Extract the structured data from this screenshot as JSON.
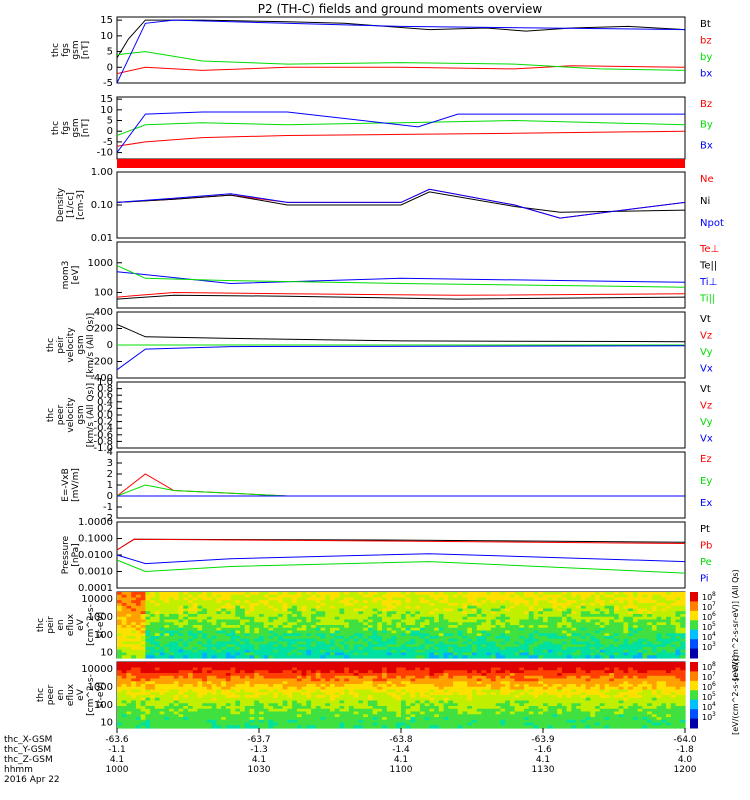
{
  "title": "P2 (TH-C) fields and ground moments overview",
  "colors": {
    "black": "#000000",
    "red": "#ff0000",
    "green": "#00dd00",
    "blue": "#0000ff",
    "magenta": "#cc00cc"
  },
  "chart_data": [
    {
      "type": "line",
      "ylabel": [
        "thc",
        "fgs",
        "gsm",
        "[nT]"
      ],
      "yticks": [
        "15",
        "10",
        "5",
        "0",
        "-5"
      ],
      "ylim": [
        -5,
        16
      ],
      "log": false,
      "series": [
        {
          "name": "Bt",
          "color": "#000000",
          "points": [
            [
              0,
              3
            ],
            [
              0.02,
              9
            ],
            [
              0.05,
              15
            ],
            [
              0.15,
              15
            ],
            [
              0.3,
              14.5
            ],
            [
              0.4,
              14
            ],
            [
              0.55,
              12
            ],
            [
              0.65,
              12.5
            ],
            [
              0.72,
              11.5
            ],
            [
              0.8,
              12.5
            ],
            [
              0.9,
              13
            ],
            [
              1,
              12
            ]
          ]
        },
        {
          "name": "bz",
          "color": "#ff0000",
          "points": [
            [
              0,
              -2
            ],
            [
              0.05,
              0
            ],
            [
              0.15,
              -1
            ],
            [
              0.3,
              0
            ],
            [
              0.5,
              0
            ],
            [
              0.7,
              -0.5
            ],
            [
              0.8,
              0.5
            ],
            [
              1,
              0
            ]
          ]
        },
        {
          "name": "by",
          "color": "#00dd00",
          "points": [
            [
              0,
              4
            ],
            [
              0.05,
              5
            ],
            [
              0.15,
              2
            ],
            [
              0.3,
              1
            ],
            [
              0.5,
              1.5
            ],
            [
              0.7,
              1
            ],
            [
              0.85,
              -0.5
            ],
            [
              1,
              -1
            ]
          ]
        },
        {
          "name": "bx",
          "color": "#0000ff",
          "points": [
            [
              0,
              -5
            ],
            [
              0.05,
              14
            ],
            [
              0.1,
              15
            ],
            [
              0.5,
              13
            ],
            [
              1,
              12
            ]
          ]
        }
      ]
    },
    {
      "type": "line",
      "ylabel": [
        "thc",
        "fgs",
        "gsm",
        "[nT]"
      ],
      "yticks": [
        "15",
        "10",
        "5",
        "0",
        "-5",
        "-10"
      ],
      "ylim": [
        -13,
        16
      ],
      "log": false,
      "series": [
        {
          "name": "Bz",
          "color": "#ff0000",
          "points": [
            [
              0,
              -7
            ],
            [
              0.05,
              -5
            ],
            [
              0.15,
              -3
            ],
            [
              0.3,
              -2
            ],
            [
              0.5,
              -1.5
            ],
            [
              0.7,
              -1
            ],
            [
              1,
              0
            ]
          ]
        },
        {
          "name": "By",
          "color": "#00dd00",
          "points": [
            [
              0,
              -2
            ],
            [
              0.05,
              3
            ],
            [
              0.15,
              4
            ],
            [
              0.3,
              3
            ],
            [
              0.5,
              4
            ],
            [
              0.7,
              5
            ],
            [
              1,
              3
            ]
          ]
        },
        {
          "name": "Bx",
          "color": "#0000ff",
          "points": [
            [
              0,
              -10
            ],
            [
              0.05,
              8
            ],
            [
              0.15,
              9
            ],
            [
              0.3,
              9
            ],
            [
              0.53,
              2
            ],
            [
              0.6,
              8
            ],
            [
              0.8,
              8
            ],
            [
              1,
              8
            ]
          ]
        }
      ]
    },
    {
      "type": "heatmap",
      "label": "flag bar"
    },
    {
      "type": "line",
      "ylabel": [
        "Density",
        "[1/cc]",
        "[cm-3]"
      ],
      "yticks": [
        "1.00",
        "0.10",
        "0.01"
      ],
      "ylim": [
        0.01,
        1
      ],
      "log": true,
      "series": [
        {
          "name": "Ne",
          "color": "#ff0000",
          "points": [
            [
              0,
              0.12
            ],
            [
              0.1,
              0.15
            ],
            [
              0.2,
              0.2
            ],
            [
              0.3,
              0.12
            ],
            [
              0.5,
              0.12
            ],
            [
              0.55,
              0.3
            ],
            [
              0.7,
              0.1
            ],
            [
              0.78,
              0.04
            ],
            [
              1,
              0.12
            ]
          ]
        },
        {
          "name": "Ni",
          "color": "#000000",
          "points": [
            [
              0,
              0.12
            ],
            [
              0.1,
              0.15
            ],
            [
              0.2,
              0.2
            ],
            [
              0.3,
              0.1
            ],
            [
              0.5,
              0.1
            ],
            [
              0.55,
              0.25
            ],
            [
              0.7,
              0.09
            ],
            [
              0.78,
              0.06
            ],
            [
              1,
              0.07
            ]
          ]
        },
        {
          "name": "Npot",
          "color": "#0000ff",
          "points": [
            [
              0,
              0.12
            ],
            [
              0.1,
              0.16
            ],
            [
              0.2,
              0.22
            ],
            [
              0.3,
              0.12
            ],
            [
              0.5,
              0.12
            ],
            [
              0.55,
              0.3
            ],
            [
              0.7,
              0.1
            ],
            [
              0.78,
              0.04
            ],
            [
              1,
              0.12
            ]
          ]
        }
      ]
    },
    {
      "type": "line",
      "ylabel": [
        "mom3",
        "[eV]"
      ],
      "yticks": [
        "1000",
        "100"
      ],
      "ylim": [
        30,
        5000
      ],
      "log": true,
      "series": [
        {
          "name": "Te⊥",
          "color": "#ff0000",
          "points": [
            [
              0,
              70
            ],
            [
              0.1,
              100
            ],
            [
              0.3,
              90
            ],
            [
              0.6,
              80
            ],
            [
              1,
              90
            ]
          ]
        },
        {
          "name": "Te||",
          "color": "#000000",
          "points": [
            [
              0,
              60
            ],
            [
              0.1,
              80
            ],
            [
              0.3,
              75
            ],
            [
              0.6,
              60
            ],
            [
              1,
              70
            ]
          ]
        },
        {
          "name": "Ti⊥",
          "color": "#0000ff",
          "points": [
            [
              0,
              500
            ],
            [
              0.05,
              400
            ],
            [
              0.2,
              200
            ],
            [
              0.5,
              300
            ],
            [
              1,
              220
            ]
          ]
        },
        {
          "name": "Ti||",
          "color": "#00dd00",
          "points": [
            [
              0,
              800
            ],
            [
              0.05,
              300
            ],
            [
              0.2,
              250
            ],
            [
              0.5,
              200
            ],
            [
              1,
              150
            ]
          ]
        }
      ]
    },
    {
      "type": "line",
      "ylabel": [
        "thc",
        "peir",
        "velocity",
        "gsm",
        "[km/s (All Qs)]"
      ],
      "yticks": [
        "400",
        "200",
        "0",
        "-200",
        "-400"
      ],
      "ylim": [
        -400,
        400
      ],
      "log": false,
      "series": [
        {
          "name": "Vt",
          "color": "#000000",
          "points": [
            [
              0,
              250
            ],
            [
              0.05,
              100
            ],
            [
              0.2,
              80
            ],
            [
              0.5,
              50
            ],
            [
              1,
              40
            ]
          ]
        },
        {
          "name": "Vz",
          "color": "#ff0000",
          "points": [
            [
              0,
              0
            ],
            [
              0.2,
              0
            ],
            [
              1,
              0
            ]
          ]
        },
        {
          "name": "Vy",
          "color": "#00dd00",
          "points": [
            [
              0,
              0
            ],
            [
              0.2,
              0
            ],
            [
              1,
              0
            ]
          ]
        },
        {
          "name": "Vx",
          "color": "#0000ff",
          "points": [
            [
              0,
              -300
            ],
            [
              0.05,
              -50
            ],
            [
              0.2,
              -20
            ],
            [
              1,
              -10
            ]
          ]
        }
      ]
    },
    {
      "type": "line",
      "ylabel": [
        "thc",
        "peer",
        "velocity",
        "gsm",
        "[km/s (All Qs)]"
      ],
      "yticks": [
        "1.0",
        "0.8",
        "0.6",
        "0.4",
        "0.2",
        "0.0",
        "-0.2",
        "-0.4",
        "-0.6",
        "-0.8",
        "-1.0"
      ],
      "ylim": [
        -1,
        1
      ],
      "log": false,
      "series": [
        {
          "name": "Vt",
          "color": "#000000",
          "points": []
        },
        {
          "name": "Vz",
          "color": "#ff0000",
          "points": []
        },
        {
          "name": "Vy",
          "color": "#00dd00",
          "points": []
        },
        {
          "name": "Vx",
          "color": "#0000ff",
          "points": []
        }
      ]
    },
    {
      "type": "line",
      "ylabel": [
        "E=-VxB",
        "[mV/m]"
      ],
      "yticks": [
        "4",
        "3",
        "2",
        "1",
        "0",
        "-1",
        "-2"
      ],
      "ylim": [
        -2,
        4
      ],
      "log": false,
      "series": [
        {
          "name": "Ez",
          "color": "#ff0000",
          "points": [
            [
              0,
              0
            ],
            [
              0.05,
              2
            ],
            [
              0.1,
              0.5
            ],
            [
              0.3,
              0
            ],
            [
              1,
              0
            ]
          ]
        },
        {
          "name": "Ey",
          "color": "#00dd00",
          "points": [
            [
              0,
              0
            ],
            [
              0.05,
              1
            ],
            [
              0.1,
              0.5
            ],
            [
              0.3,
              0
            ],
            [
              1,
              0
            ]
          ]
        },
        {
          "name": "Ex",
          "color": "#0000ff",
          "points": [
            [
              0,
              0
            ],
            [
              0.05,
              0
            ],
            [
              0.1,
              0
            ],
            [
              0.3,
              0
            ],
            [
              1,
              0
            ]
          ]
        }
      ]
    },
    {
      "type": "line",
      "ylabel": [
        "Pressure",
        "[nPa]"
      ],
      "yticks": [
        "1.0000",
        "0.1000",
        "0.0100",
        "0.0010",
        "0.0001"
      ],
      "ylim": [
        0.0001,
        1
      ],
      "log": true,
      "series": [
        {
          "name": "Pt",
          "color": "#000000",
          "points": [
            [
              0,
              0.02
            ],
            [
              0.03,
              0.09
            ],
            [
              0.5,
              0.08
            ],
            [
              1,
              0.06
            ]
          ]
        },
        {
          "name": "Pb",
          "color": "#ff0000",
          "points": [
            [
              0,
              0.02
            ],
            [
              0.03,
              0.09
            ],
            [
              0.5,
              0.07
            ],
            [
              1,
              0.05
            ]
          ]
        },
        {
          "name": "Pe",
          "color": "#00dd00",
          "points": [
            [
              0,
              0.005
            ],
            [
              0.05,
              0.001
            ],
            [
              0.2,
              0.002
            ],
            [
              0.55,
              0.004
            ],
            [
              1,
              0.0008
            ]
          ]
        },
        {
          "name": "Pi",
          "color": "#0000ff",
          "points": [
            [
              0,
              0.01
            ],
            [
              0.05,
              0.003
            ],
            [
              0.2,
              0.006
            ],
            [
              0.55,
              0.012
            ],
            [
              1,
              0.004
            ]
          ]
        }
      ]
    },
    {
      "type": "heatmap",
      "ylabel": [
        "thc",
        "peir",
        "en",
        "eflux",
        "eV",
        "[cm^2-s-",
        "sr-eV]"
      ],
      "yticks": [
        "10000",
        "1000",
        "100",
        "10"
      ],
      "ylim": [
        5,
        25000
      ],
      "log": true,
      "colorbar_label": "[eV/(cm^2-s-sr-eV)] (All Qs)",
      "colorbar_ticks": [
        "10^8",
        "10^7",
        "10^6",
        "10^5",
        "10^4",
        "10^3"
      ]
    },
    {
      "type": "heatmap",
      "ylabel": [
        "thc",
        "peer",
        "en",
        "eflux",
        "eV",
        "[cm^2-s-",
        "sr-eV]"
      ],
      "yticks": [
        "10000",
        "1000",
        "100",
        "10"
      ],
      "ylim": [
        5,
        25000
      ],
      "log": true,
      "colorbar_label": "[eV/(cm^2-s-sr-eV)]",
      "colorbar_ticks": [
        "10^8",
        "10^7",
        "10^6",
        "10^5",
        "10^4",
        "10^3"
      ]
    }
  ],
  "xaxis": {
    "row_labels": [
      "thc_X-GSM",
      "thc_Y-GSM",
      "thc_Z-GSM",
      "hhmm",
      "2016 Apr 22"
    ],
    "ticks": [
      {
        "v": [
          "-63.6",
          "-1.1",
          "4.1",
          "1000"
        ]
      },
      {
        "v": [
          "-63.7",
          "-1.3",
          "4.1",
          "1030"
        ]
      },
      {
        "v": [
          "-63.8",
          "-1.4",
          "4.1",
          "1100"
        ]
      },
      {
        "v": [
          "-63.9",
          "-1.6",
          "4.1",
          "1130"
        ]
      },
      {
        "v": [
          "-64.0",
          "-1.8",
          "4.0",
          "1200"
        ]
      }
    ]
  },
  "colorbar_tick_text": [
    {
      "base": "10",
      "exp": "8"
    },
    {
      "base": "10",
      "exp": "7"
    },
    {
      "base": "10",
      "exp": "6"
    },
    {
      "base": "10",
      "exp": "5"
    },
    {
      "base": "10",
      "exp": "4"
    },
    {
      "base": "10",
      "exp": "3"
    }
  ]
}
